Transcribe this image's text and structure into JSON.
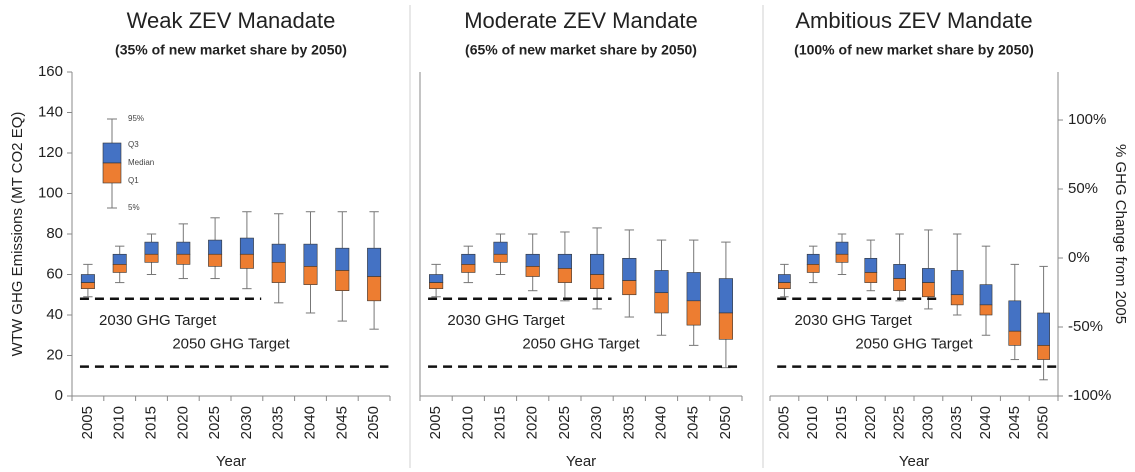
{
  "chart_data": [
    {
      "type": "box",
      "title": "Weak ZEV Manadate",
      "subtitle": "(35% of new market share by 2050)",
      "categories": [
        "2005",
        "2010",
        "2015",
        "2020",
        "2025",
        "2030",
        "2035",
        "2040",
        "2045",
        "2050"
      ],
      "p5": [
        49,
        56,
        60,
        58,
        58,
        53,
        46,
        41,
        37,
        33
      ],
      "q1": [
        53,
        61,
        66,
        65,
        64,
        63,
        56,
        55,
        52,
        47
      ],
      "median": [
        56,
        65,
        70,
        70,
        70,
        70,
        66,
        64,
        62,
        59
      ],
      "q3": [
        60,
        70,
        76,
        76,
        77,
        78,
        75,
        75,
        73,
        73
      ],
      "p95": [
        65,
        74,
        80,
        85,
        88,
        91,
        90,
        91,
        91,
        91
      ],
      "upper_color": "#4472c4",
      "lower_color": "#ed7d31",
      "ylim": [
        0,
        160
      ],
      "yticks": [
        0,
        20,
        40,
        60,
        80,
        100,
        120,
        140,
        160
      ],
      "y_label": "WTW GHG Emissions (MT CO2 EQ)",
      "x_label": "Year",
      "targets": [
        {
          "label": "2030 GHG Target",
          "value": 48,
          "until": "2030"
        },
        {
          "label": "2050 GHG Target",
          "value": 14.5,
          "until": "2050"
        }
      ],
      "legend": {
        "p95": "95%",
        "q3": "Q3",
        "median": "Median",
        "q1": "Q1",
        "p5": "5%"
      }
    },
    {
      "type": "box",
      "title": "Moderate ZEV Mandate",
      "subtitle": "(65% of new market share by 2050)",
      "categories": [
        "2005",
        "2010",
        "2015",
        "2020",
        "2025",
        "2030",
        "2035",
        "2040",
        "2045",
        "2050"
      ],
      "p5": [
        49,
        56,
        60,
        52,
        47,
        43,
        39,
        30,
        25,
        14
      ],
      "q1": [
        53,
        61,
        66,
        59,
        56,
        53,
        50,
        41,
        35,
        28
      ],
      "median": [
        56,
        65,
        70,
        64,
        63,
        60,
        57,
        51,
        47,
        41
      ],
      "q3": [
        60,
        70,
        76,
        70,
        70,
        70,
        68,
        62,
        61,
        58
      ],
      "p95": [
        65,
        74,
        80,
        80,
        81,
        83,
        82,
        77,
        77,
        76
      ],
      "upper_color": "#4472c4",
      "lower_color": "#ed7d31",
      "ylim": [
        0,
        160
      ],
      "x_label": "Year",
      "targets": [
        {
          "label": "2030 GHG Target",
          "value": 48,
          "until": "2030"
        },
        {
          "label": "2050 GHG Target",
          "value": 14.5,
          "until": "2050"
        }
      ]
    },
    {
      "type": "box",
      "title": "Ambitious ZEV Mandate",
      "subtitle": "(100% of new market share by 2050)",
      "categories": [
        "2005",
        "2010",
        "2015",
        "2020",
        "2025",
        "2030",
        "2035",
        "2040",
        "2045",
        "2050"
      ],
      "p5": [
        49,
        56,
        60,
        52,
        47,
        43,
        40,
        30,
        18,
        8
      ],
      "q1": [
        53,
        61,
        66,
        56,
        52,
        49,
        45,
        40,
        25,
        18
      ],
      "median": [
        56,
        65,
        70,
        61,
        58,
        56,
        50,
        45,
        32,
        25
      ],
      "q3": [
        60,
        70,
        76,
        68,
        65,
        63,
        62,
        55,
        47,
        41
      ],
      "p95": [
        65,
        74,
        80,
        77,
        80,
        82,
        80,
        74,
        65,
        64
      ],
      "upper_color": "#4472c4",
      "lower_color": "#ed7d31",
      "ylim": [
        0,
        160
      ],
      "x_label": "Year",
      "y2lim": [
        -100,
        134.8
      ],
      "y2ticks": [
        {
          "value": -100,
          "label": "-100%"
        },
        {
          "value": -50,
          "label": "-50%"
        },
        {
          "value": 0,
          "label": "0%"
        },
        {
          "value": 50,
          "label": "50%"
        },
        {
          "value": 100,
          "label": "100%"
        }
      ],
      "y2_label": "% GHG Change from 2005",
      "targets": [
        {
          "label": "2030 GHG Target",
          "value": 48,
          "until": "2030"
        },
        {
          "label": "2050 GHG Target",
          "value": 14.5,
          "until": "2050"
        }
      ]
    }
  ]
}
